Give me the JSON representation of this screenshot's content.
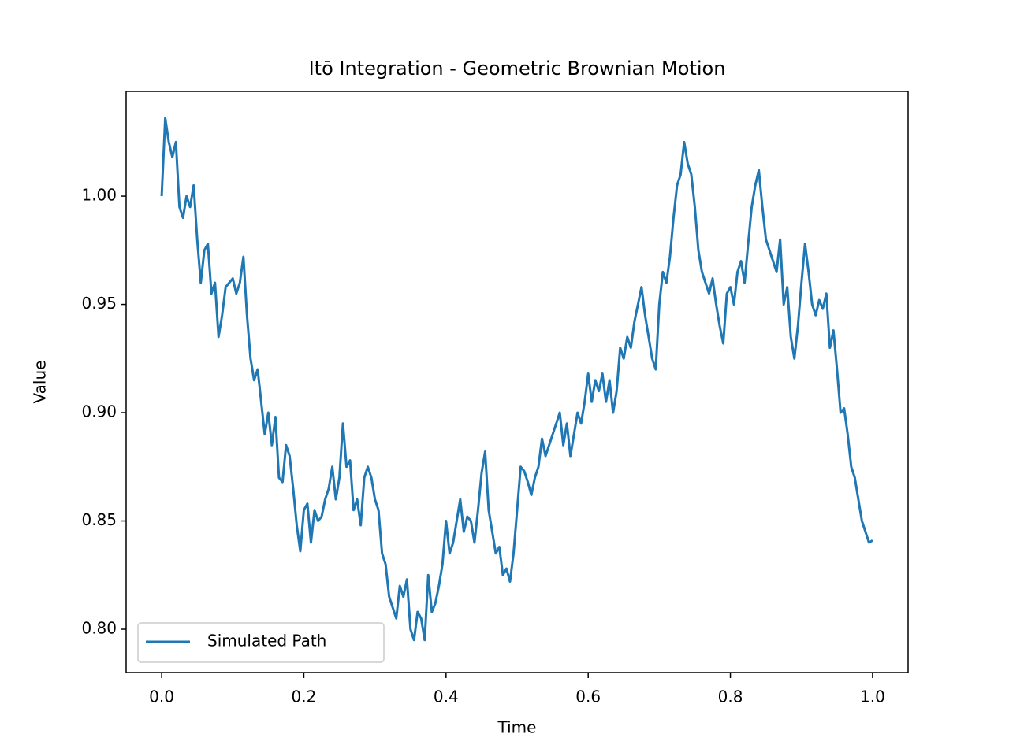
{
  "chart_data": {
    "type": "line",
    "title": "Itō Integration - Geometric Brownian Motion",
    "x_label": "Time",
    "y_label": "Value",
    "xlim": [
      -0.05,
      1.05
    ],
    "ylim": [
      0.78,
      1.0484
    ],
    "xticks": [
      {
        "value": 0,
        "label": "0.0"
      },
      0.2,
      0.4,
      0.6,
      0.8,
      {
        "value": 1,
        "label": "1.0"
      }
    ],
    "yticks": [
      {
        "value": 0.8,
        "label": "0.80"
      },
      0.85,
      {
        "value": 0.9,
        "label": "0.90"
      },
      0.95,
      {
        "value": 1,
        "label": "1.00"
      }
    ],
    "legend": "lower left",
    "x": [
      0,
      0.005,
      0.01,
      0.015,
      0.02,
      0.025,
      0.03,
      0.035,
      0.04,
      0.045,
      0.05,
      0.055,
      0.06,
      0.065,
      0.07,
      0.075,
      0.08,
      0.085,
      0.09,
      0.095,
      0.1,
      0.105,
      0.11,
      0.115,
      0.12,
      0.125,
      0.13,
      0.135,
      0.14,
      0.145,
      0.15,
      0.155,
      0.16,
      0.165,
      0.17,
      0.175,
      0.18,
      0.185,
      0.19,
      0.195,
      0.2,
      0.205,
      0.21,
      0.215,
      0.22,
      0.225,
      0.23,
      0.235,
      0.24,
      0.245,
      0.25,
      0.255,
      0.26,
      0.265,
      0.27,
      0.275,
      0.28,
      0.285,
      0.29,
      0.295,
      0.3,
      0.305,
      0.31,
      0.315,
      0.32,
      0.325,
      0.33,
      0.335,
      0.34,
      0.345,
      0.35,
      0.355,
      0.36,
      0.365,
      0.37,
      0.375,
      0.38,
      0.385,
      0.39,
      0.395,
      0.4,
      0.405,
      0.41,
      0.415,
      0.42,
      0.425,
      0.43,
      0.435,
      0.44,
      0.445,
      0.45,
      0.455,
      0.46,
      0.465,
      0.47,
      0.475,
      0.48,
      0.485,
      0.49,
      0.495,
      0.5,
      0.505,
      0.51,
      0.515,
      0.52,
      0.525,
      0.53,
      0.535,
      0.54,
      0.545,
      0.55,
      0.555,
      0.56,
      0.565,
      0.57,
      0.575,
      0.58,
      0.585,
      0.59,
      0.595,
      0.6,
      0.605,
      0.61,
      0.615,
      0.62,
      0.625,
      0.63,
      0.635,
      0.64,
      0.645,
      0.65,
      0.655,
      0.66,
      0.665,
      0.67,
      0.675,
      0.68,
      0.685,
      0.69,
      0.695,
      0.7,
      0.705,
      0.71,
      0.715,
      0.72,
      0.725,
      0.73,
      0.735,
      0.74,
      0.745,
      0.75,
      0.755,
      0.76,
      0.765,
      0.77,
      0.775,
      0.78,
      0.785,
      0.79,
      0.795,
      0.8,
      0.805,
      0.81,
      0.815,
      0.82,
      0.825,
      0.83,
      0.835,
      0.84,
      0.845,
      0.85,
      0.855,
      0.86,
      0.865,
      0.87,
      0.875,
      0.88,
      0.885,
      0.89,
      0.895,
      0.9,
      0.905,
      0.91,
      0.915,
      0.92,
      0.925,
      0.93,
      0.935,
      0.94,
      0.945,
      0.95,
      0.955,
      0.96,
      0.965,
      0.97,
      0.975,
      0.98,
      0.985,
      0.99,
      0.995,
      1
    ],
    "series": [
      {
        "name": "Simulated Path",
        "color": "#1f77b4",
        "values": [
          1.0,
          1.036,
          1.025,
          1.018,
          1.025,
          0.995,
          0.99,
          1.0,
          0.995,
          1.005,
          0.98,
          0.96,
          0.975,
          0.978,
          0.955,
          0.96,
          0.935,
          0.945,
          0.958,
          0.96,
          0.962,
          0.955,
          0.96,
          0.972,
          0.945,
          0.925,
          0.915,
          0.92,
          0.905,
          0.89,
          0.9,
          0.885,
          0.898,
          0.87,
          0.868,
          0.885,
          0.88,
          0.865,
          0.848,
          0.836,
          0.855,
          0.858,
          0.84,
          0.855,
          0.85,
          0.852,
          0.86,
          0.865,
          0.875,
          0.86,
          0.87,
          0.895,
          0.875,
          0.878,
          0.855,
          0.86,
          0.848,
          0.87,
          0.875,
          0.87,
          0.86,
          0.855,
          0.835,
          0.83,
          0.815,
          0.81,
          0.805,
          0.82,
          0.815,
          0.823,
          0.8,
          0.795,
          0.808,
          0.805,
          0.795,
          0.825,
          0.808,
          0.812,
          0.82,
          0.83,
          0.85,
          0.835,
          0.84,
          0.85,
          0.86,
          0.845,
          0.852,
          0.85,
          0.84,
          0.855,
          0.872,
          0.882,
          0.855,
          0.845,
          0.835,
          0.838,
          0.825,
          0.828,
          0.822,
          0.835,
          0.855,
          0.875,
          0.873,
          0.868,
          0.862,
          0.87,
          0.875,
          0.888,
          0.88,
          0.885,
          0.89,
          0.895,
          0.9,
          0.885,
          0.895,
          0.88,
          0.89,
          0.9,
          0.895,
          0.905,
          0.918,
          0.905,
          0.915,
          0.91,
          0.918,
          0.905,
          0.915,
          0.9,
          0.91,
          0.93,
          0.925,
          0.935,
          0.93,
          0.942,
          0.95,
          0.958,
          0.945,
          0.935,
          0.925,
          0.92,
          0.95,
          0.965,
          0.96,
          0.972,
          0.99,
          1.005,
          1.01,
          1.025,
          1.015,
          1.01,
          0.995,
          0.975,
          0.965,
          0.96,
          0.955,
          0.962,
          0.95,
          0.94,
          0.932,
          0.955,
          0.958,
          0.95,
          0.965,
          0.97,
          0.96,
          0.978,
          0.995,
          1.005,
          1.012,
          0.995,
          0.98,
          0.975,
          0.97,
          0.965,
          0.98,
          0.95,
          0.958,
          0.935,
          0.925,
          0.94,
          0.96,
          0.978,
          0.965,
          0.95,
          0.945,
          0.952,
          0.948,
          0.955,
          0.93,
          0.938,
          0.92,
          0.9,
          0.902,
          0.89,
          0.875,
          0.87,
          0.86,
          0.85,
          0.845,
          0.84,
          0.841
        ]
      }
    ]
  }
}
